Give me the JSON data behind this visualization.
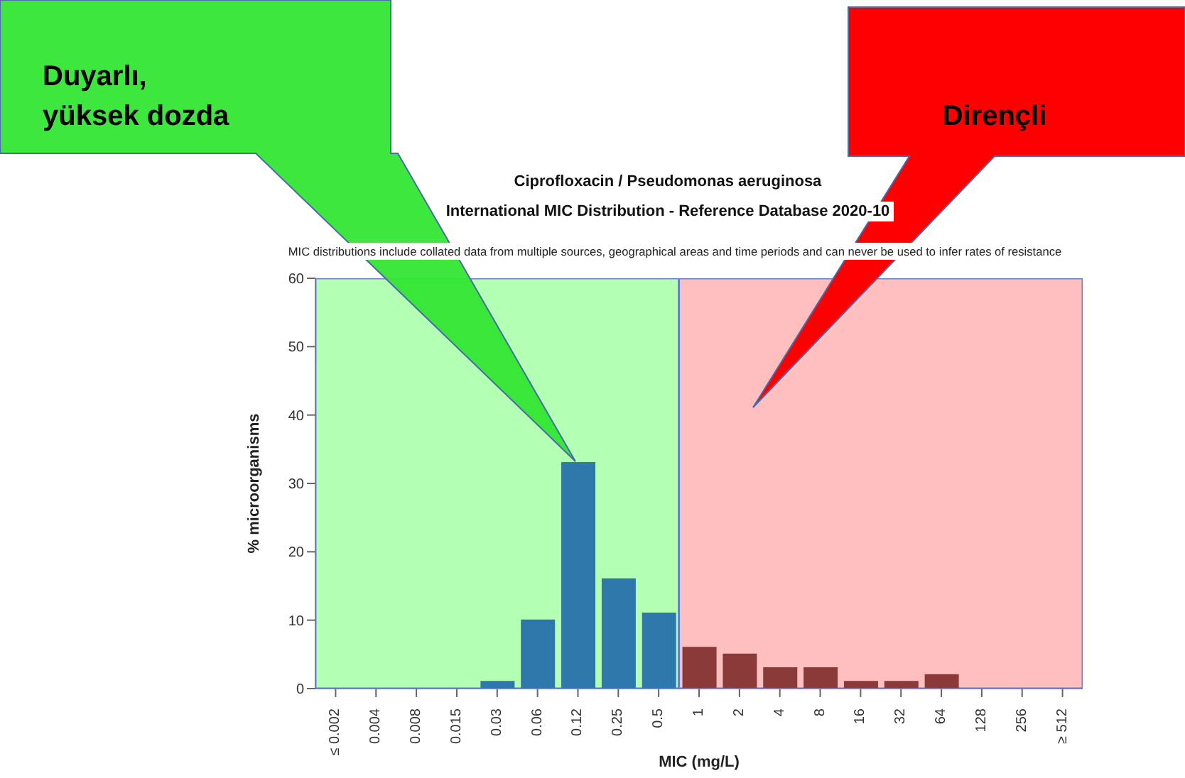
{
  "chart_data": {
    "type": "bar",
    "title": "Ciprofloxacin / Pseudomonas aeruginosa",
    "subtitle": "International MIC Distribution - Reference Database 2020-10",
    "annotations": [
      "MIC distributions include collated data from multiple sources, geographical areas and time periods and can never be used to infer rates of resistance",
      "Duyarlı, yüksek dozda",
      "Dirençli"
    ],
    "xlabel": "MIC (mg/L)",
    "ylabel": "% microorganisms",
    "categories": [
      "≤ 0.002",
      "0.004",
      "0.008",
      "0.015",
      "0.03",
      "0.06",
      "0.12",
      "0.25",
      "0.5",
      "1",
      "2",
      "4",
      "8",
      "16",
      "32",
      "64",
      "128",
      "256",
      "≥ 512"
    ],
    "values": [
      0,
      0,
      0,
      0,
      1,
      10,
      33,
      16,
      11,
      6,
      5,
      3,
      3,
      1,
      1,
      2,
      0,
      0,
      0
    ],
    "colors": [
      "#2e78ab",
      "#2e78ab",
      "#2e78ab",
      "#2e78ab",
      "#2e78ab",
      "#2e78ab",
      "#2e78ab",
      "#2e78ab",
      "#2e78ab",
      "#8b3a3a",
      "#8b3a3a",
      "#8b3a3a",
      "#8b3a3a",
      "#8b3a3a",
      "#8b3a3a",
      "#8b3a3a",
      "#8b3a3a",
      "#8b3a3a",
      "#8b3a3a"
    ],
    "ylim": [
      0,
      60
    ],
    "yticks": [
      0,
      10,
      20,
      30,
      40,
      50,
      60
    ],
    "bands": [
      {
        "axis": "x",
        "from": "≤ 0.002",
        "to": "0.5",
        "color": "#b3ffb3"
      },
      {
        "axis": "x",
        "from": "1",
        "to": "≥ 512",
        "color": "#ffbfbf"
      }
    ],
    "grid": false,
    "legend": false
  }
}
